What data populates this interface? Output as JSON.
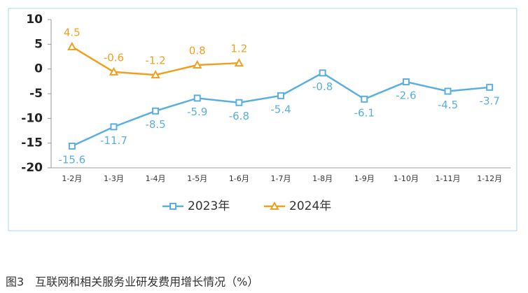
{
  "chart_data": {
    "type": "line",
    "categories": [
      "1-2月",
      "1-3月",
      "1-4月",
      "1-5月",
      "1-6月",
      "1-7月",
      "1-8月",
      "1-9月",
      "1-10月",
      "1-11月",
      "1-12月"
    ],
    "series": [
      {
        "name": "2023年",
        "color": "#5aaee0",
        "marker": "square",
        "label_position": "below",
        "values": [
          -15.6,
          -11.7,
          -8.5,
          -5.9,
          -6.8,
          -5.4,
          -0.8,
          -6.1,
          -2.6,
          -4.5,
          -3.7
        ]
      },
      {
        "name": "2024年",
        "color": "#f0a020",
        "marker": "triangle",
        "label_position": "above",
        "values": [
          4.5,
          -0.6,
          -1.2,
          0.8,
          1.2,
          null,
          null,
          null,
          null,
          null,
          null
        ]
      }
    ],
    "ylim": [
      -20,
      10
    ],
    "yticks": [
      10,
      5,
      0,
      -5,
      -10,
      -15,
      -20
    ],
    "grid": false,
    "legend": "bottom"
  },
  "caption": "图3　互联网和相关服务业研发费用增长情况（%）"
}
